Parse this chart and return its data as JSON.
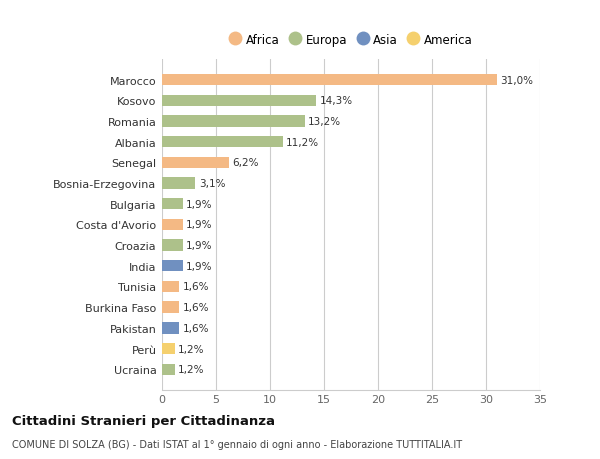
{
  "countries": [
    "Marocco",
    "Kosovo",
    "Romania",
    "Albania",
    "Senegal",
    "Bosnia-Erzegovina",
    "Bulgaria",
    "Costa d'Avorio",
    "Croazia",
    "India",
    "Tunisia",
    "Burkina Faso",
    "Pakistan",
    "Perù",
    "Ucraina"
  ],
  "values": [
    31.0,
    14.3,
    13.2,
    11.2,
    6.2,
    3.1,
    1.9,
    1.9,
    1.9,
    1.9,
    1.6,
    1.6,
    1.6,
    1.2,
    1.2
  ],
  "labels": [
    "31,0%",
    "14,3%",
    "13,2%",
    "11,2%",
    "6,2%",
    "3,1%",
    "1,9%",
    "1,9%",
    "1,9%",
    "1,9%",
    "1,6%",
    "1,6%",
    "1,6%",
    "1,2%",
    "1,2%"
  ],
  "colors": [
    "#f4b984",
    "#adc eighteen",
    "#adc18a",
    "#adc18a",
    "#f4b984",
    "#adc18a",
    "#adc18a",
    "#f4b984",
    "#adc18a",
    "#7090c0",
    "#f4b984",
    "#f4b984",
    "#7090c0",
    "#f5d06e",
    "#adc18a"
  ],
  "bar_colors": [
    "#f4b984",
    "#adc18a",
    "#adc18a",
    "#adc18a",
    "#f4b984",
    "#adc18a",
    "#adc18a",
    "#f4b984",
    "#adc18a",
    "#7090c0",
    "#f4b984",
    "#f4b984",
    "#7090c0",
    "#f5d06e",
    "#adc18a"
  ],
  "legend_labels": [
    "Africa",
    "Europa",
    "Asia",
    "America"
  ],
  "legend_colors": [
    "#f4b984",
    "#adc18a",
    "#7090c0",
    "#f5d06e"
  ],
  "title": "Cittadini Stranieri per Cittadinanza",
  "subtitle": "COMUNE DI SOLZA (BG) - Dati ISTAT al 1° gennaio di ogni anno - Elaborazione TUTTITALIA.IT",
  "xlim": [
    0,
    35
  ],
  "xticks": [
    0,
    5,
    10,
    15,
    20,
    25,
    30,
    35
  ],
  "background_color": "#ffffff",
  "plot_bg": "#f5f5f5",
  "bar_alpha": 1.0,
  "bar_height": 0.55
}
